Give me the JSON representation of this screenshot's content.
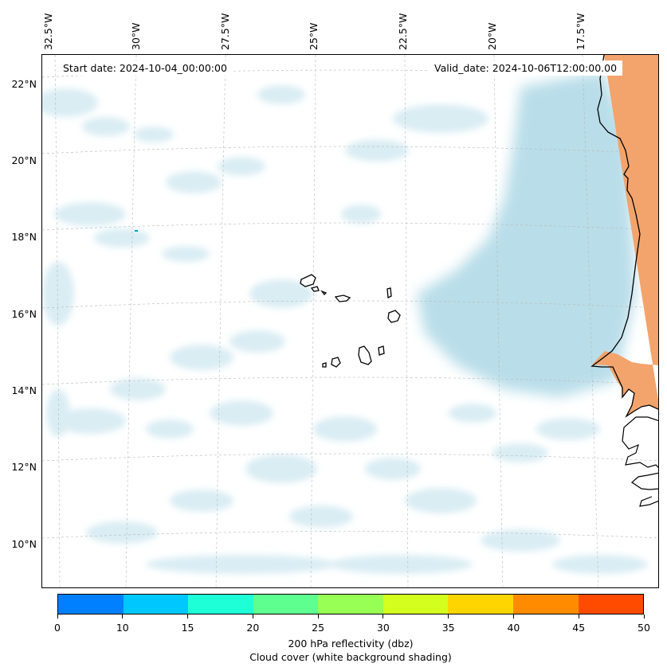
{
  "map": {
    "start_date_label": "Start date: 2024-10-04_00:00:00",
    "valid_date_label": "Valid_date: 2024-10-06T12:00:00.00",
    "lon_labels": [
      "32.5°W",
      "30°W",
      "27.5°W",
      "25°W",
      "22.5°W",
      "20°W",
      "17.5°W"
    ],
    "lat_labels": [
      "22°N",
      "20°N",
      "18°N",
      "16°N",
      "14°N",
      "12°N",
      "10°N"
    ],
    "land_fill_color": "#f3a46c",
    "cloud_color": "#add8e6",
    "coastline_color": "#000000",
    "gridlines": true
  },
  "colorbar": {
    "ticks": [
      "0",
      "10",
      "15",
      "20",
      "25",
      "30",
      "35",
      "40",
      "45",
      "50"
    ],
    "colors": [
      "#0080ff",
      "#00c8ff",
      "#1effd8",
      "#5fff8f",
      "#98ff55",
      "#d4ff1e",
      "#ffd500",
      "#ff8c00",
      "#ff4b00"
    ],
    "label_line1": "200 hPa reflectivity (dbz)",
    "label_line2": "Cloud cover (white background shading)"
  }
}
